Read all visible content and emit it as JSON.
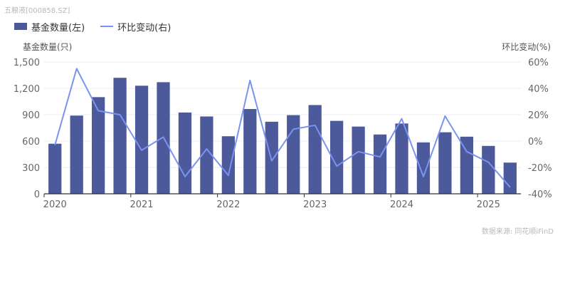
{
  "watermark": "五粮液[000858.SZ]",
  "source": "数据来源: 同花顺iFinD",
  "colors": {
    "bar": "#4c5a9b",
    "line": "#7b93f0",
    "axis": "#333333",
    "grid": "#eeeeee"
  },
  "chart_data": {
    "type": "bar+line",
    "legend": {
      "position": "top-left"
    },
    "left_axis": {
      "label": "基金数量(只)",
      "ylim": [
        0,
        1500
      ],
      "ticks": [
        "0",
        "300",
        "600",
        "900",
        "1,200",
        "1,500"
      ]
    },
    "right_axis": {
      "label": "环比变动(%)",
      "ylim": [
        -40,
        60
      ],
      "ticks": [
        "-40%",
        "-20%",
        "0%",
        "20%",
        "40%",
        "60%"
      ]
    },
    "x_tick_labels": [
      "2020",
      "2021",
      "2022",
      "2023",
      "2024",
      "2025"
    ],
    "categories": [
      "2020Q1",
      "2020Q2",
      "2020Q3",
      "2020Q4",
      "2021Q1",
      "2021Q2",
      "2021Q3",
      "2021Q4",
      "2022Q1",
      "2022Q2",
      "2022Q3",
      "2022Q4",
      "2023Q1",
      "2023Q2",
      "2023Q3",
      "2023Q4",
      "2024Q1",
      "2024Q2",
      "2024Q3",
      "2024Q4",
      "2025Q1",
      "2025Q2"
    ],
    "series": [
      {
        "name": "基金数量(左)",
        "type": "bar",
        "axis": "left",
        "values": [
          570,
          890,
          1100,
          1320,
          1230,
          1270,
          925,
          880,
          655,
          965,
          820,
          895,
          1010,
          830,
          765,
          675,
          800,
          585,
          700,
          650,
          545,
          355
        ]
      },
      {
        "name": "环比变动(右)",
        "type": "line",
        "axis": "right",
        "values": [
          -3,
          55,
          23,
          20,
          -7,
          3,
          -27,
          -6,
          -26,
          46,
          -15,
          9,
          12,
          -19,
          -8,
          -12,
          17,
          -27,
          19,
          -8,
          -16,
          -35
        ]
      }
    ]
  }
}
